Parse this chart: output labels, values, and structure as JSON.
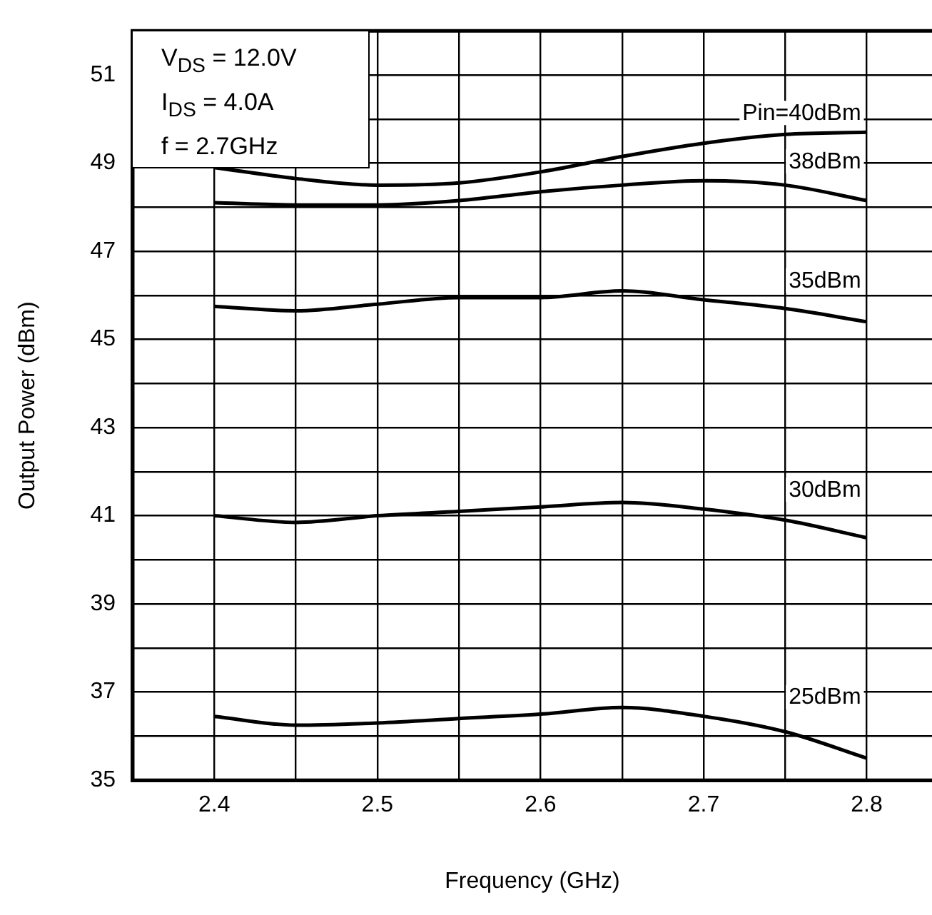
{
  "chart_data": {
    "type": "line",
    "xlabel": "Frequency (GHz)",
    "ylabel": "Output Power (dBm)",
    "x": [
      2.4,
      2.45,
      2.5,
      2.55,
      2.6,
      2.65,
      2.7,
      2.75,
      2.8
    ],
    "series": [
      {
        "name": "Pin=40dBm",
        "color": "#000000",
        "values": [
          48.9,
          48.65,
          48.5,
          48.55,
          48.8,
          49.15,
          49.45,
          49.65,
          49.7
        ]
      },
      {
        "name": "38dBm",
        "color": "#000000",
        "values": [
          48.1,
          48.05,
          48.05,
          48.15,
          48.35,
          48.5,
          48.6,
          48.5,
          48.15
        ]
      },
      {
        "name": "35dBm",
        "color": "#000000",
        "values": [
          45.75,
          45.65,
          45.8,
          45.95,
          45.95,
          46.1,
          45.9,
          45.7,
          45.4
        ]
      },
      {
        "name": "30dBm",
        "color": "#000000",
        "values": [
          41.0,
          40.85,
          41.0,
          41.1,
          41.2,
          41.3,
          41.15,
          40.9,
          40.5
        ]
      },
      {
        "name": "25dBm",
        "color": "#000000",
        "values": [
          36.45,
          36.25,
          36.3,
          36.4,
          36.5,
          36.65,
          36.45,
          36.1,
          35.5
        ]
      }
    ],
    "xlim": [
      2.35,
      2.84
    ],
    "xticks": [
      2.4,
      {
        "value": 2.45,
        "label": null
      },
      2.5,
      {
        "value": 2.55,
        "label": null
      },
      2.6,
      {
        "value": 2.65,
        "label": null
      },
      2.7,
      {
        "value": 2.75,
        "label": null
      },
      2.8
    ],
    "ylim": [
      35,
      52
    ],
    "yticks": [
      35,
      {
        "value": 36,
        "label": null
      },
      37,
      {
        "value": 38,
        "label": null
      },
      39,
      {
        "value": 40,
        "label": null
      },
      41,
      {
        "value": 42,
        "label": null
      },
      43,
      {
        "value": 44,
        "label": null
      },
      45,
      {
        "value": 46,
        "label": null
      },
      47,
      {
        "value": 48,
        "label": null
      },
      49,
      {
        "value": 50,
        "label": null
      },
      51
    ],
    "annotations": [
      "V$_{DS}$ = 12.0V",
      "I$_{DS}$ = 4.0A",
      "f = 2.7GHz"
    ],
    "grid": true,
    "legend": false,
    "marker": "none",
    "line_style": "solid"
  }
}
